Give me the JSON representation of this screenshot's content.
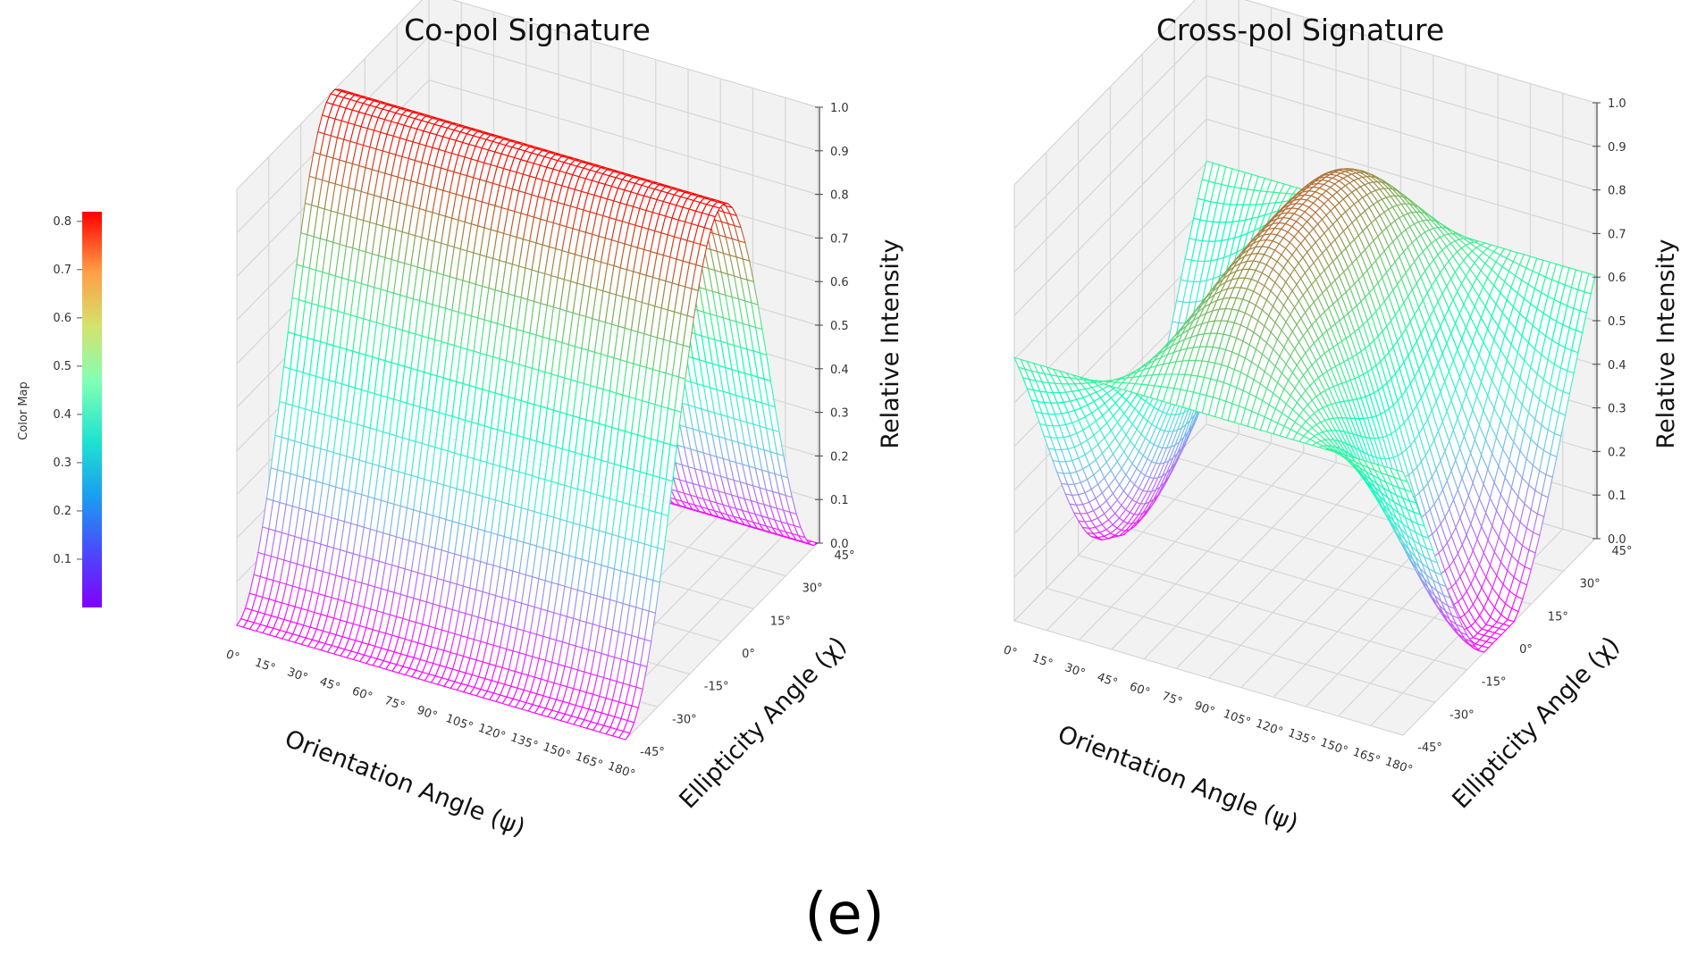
{
  "caption": "(e)",
  "colorbar": {
    "label": "Color Map",
    "ticks": [
      0.1,
      0.2,
      0.3,
      0.4,
      0.5,
      0.6,
      0.7,
      0.8
    ],
    "range": [
      0.0,
      0.82
    ],
    "colormap": "rainbow"
  },
  "chart_data": [
    {
      "type": "surface3d",
      "title": "Co-pol Signature",
      "xlabel": "Orientation Angle (ψ)",
      "ylabel": "Ellipticity Angle (χ)",
      "zlabel": "Relative Intensity",
      "x_ticks": [
        "0°",
        "15°",
        "30°",
        "45°",
        "60°",
        "75°",
        "90°",
        "105°",
        "120°",
        "135°",
        "150°",
        "165°",
        "180°"
      ],
      "y_ticks": [
        "-45°",
        "-30°",
        "-15°",
        "0°",
        "15°",
        "30°",
        "45°"
      ],
      "z_ticks": [
        "0.0",
        "0.1",
        "0.2",
        "0.3",
        "0.4",
        "0.5",
        "0.6",
        "0.7",
        "0.8",
        "0.9",
        "1.0"
      ],
      "xlim": [
        0,
        180
      ],
      "ylim": [
        -45,
        45
      ],
      "zlim": [
        0,
        1
      ],
      "grid": true,
      "function": "co-pol",
      "profile_chi": [
        -45,
        -30,
        -15,
        0,
        15,
        30,
        45
      ],
      "profile_intensity": [
        0.0,
        0.06,
        0.5,
        1.0,
        0.5,
        0.06,
        0.0
      ]
    },
    {
      "type": "surface3d",
      "title": "Cross-pol Signature",
      "xlabel": "Orientation Angle (ψ)",
      "ylabel": "Ellipticity Angle (χ)",
      "zlabel": "Relative Intensity",
      "x_ticks": [
        "0°",
        "15°",
        "30°",
        "45°",
        "60°",
        "75°",
        "90°",
        "105°",
        "120°",
        "135°",
        "150°",
        "165°",
        "180°"
      ],
      "y_ticks": [
        "-45°",
        "-30°",
        "-15°",
        "0°",
        "15°",
        "30°",
        "45°"
      ],
      "z_ticks": [
        "0.0",
        "0.1",
        "0.2",
        "0.3",
        "0.4",
        "0.5",
        "0.6",
        "0.7",
        "0.8",
        "0.9",
        "1.0"
      ],
      "xlim": [
        0,
        180
      ],
      "ylim": [
        -45,
        45
      ],
      "zlim": [
        0,
        1
      ],
      "grid": true,
      "function": "cross-pol"
    }
  ]
}
